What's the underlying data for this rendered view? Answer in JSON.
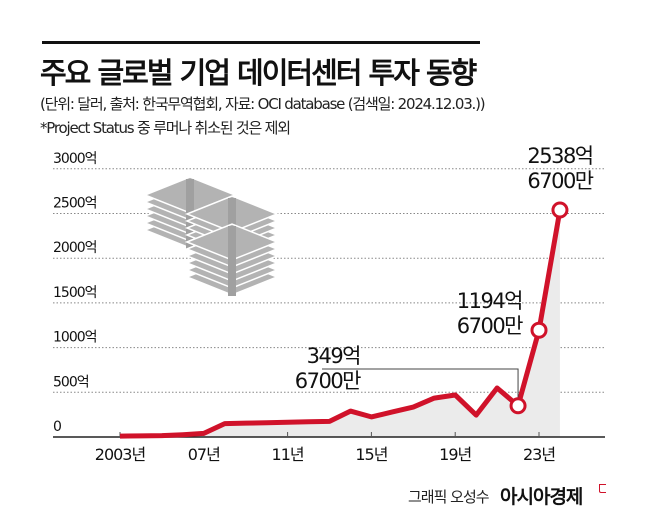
{
  "header": {
    "title": "주요 글로벌 기업 데이터센터 투자 동향",
    "subtitle": "(단위: 달러, 출처: 한국무역협회, 자료: OCI database (검색일: 2024.12.03.))",
    "note": "*Project Status 중 루머나 취소된 것은 제외"
  },
  "footer": {
    "credit": "그래픽 오성수",
    "brand": "아시아경제"
  },
  "icon": "money-stack-icon",
  "colors": {
    "line": "#d0122a",
    "area": "#ebebeb",
    "grid": "#888888",
    "icon": "#b3b3b3"
  },
  "chart_data": {
    "type": "line",
    "title": "주요 글로벌 기업 데이터센터 투자 동향",
    "xlabel": "",
    "ylabel": "",
    "ylim": [
      0,
      3000
    ],
    "xlim": [
      2002,
      2026
    ],
    "y_ticks": [
      {
        "v": 0,
        "label": "0"
      },
      {
        "v": 500,
        "label": "500억"
      },
      {
        "v": 1000,
        "label": "1000억"
      },
      {
        "v": 1500,
        "label": "1500억"
      },
      {
        "v": 2000,
        "label": "2000억"
      },
      {
        "v": 2500,
        "label": "2500억"
      },
      {
        "v": 3000,
        "label": "3000억"
      }
    ],
    "x_ticks": [
      {
        "v": 2003,
        "label": "2003년"
      },
      {
        "v": 2007,
        "label": "07년"
      },
      {
        "v": 2011,
        "label": "11년"
      },
      {
        "v": 2015,
        "label": "15년"
      },
      {
        "v": 2019,
        "label": "19년"
      },
      {
        "v": 2023,
        "label": "23년"
      }
    ],
    "grid": true,
    "unit": "억 달러",
    "x": [
      2003,
      2004,
      2005,
      2006,
      2007,
      2008,
      2009,
      2010,
      2011,
      2012,
      2013,
      2014,
      2015,
      2016,
      2017,
      2018,
      2019,
      2020,
      2021,
      2022,
      2023,
      2024
    ],
    "values": [
      10,
      12,
      15,
      25,
      40,
      150,
      155,
      160,
      165,
      170,
      175,
      290,
      225,
      280,
      335,
      435,
      470,
      245,
      548,
      349.67,
      1194.67,
      2538.67
    ],
    "annotations": [
      {
        "x": 2022,
        "line1": "349억",
        "line2": "6700만"
      },
      {
        "x": 2023,
        "line1": "1194억",
        "line2": "6700만"
      },
      {
        "x": 2024,
        "line1": "2538억",
        "line2": "6700만"
      }
    ]
  }
}
